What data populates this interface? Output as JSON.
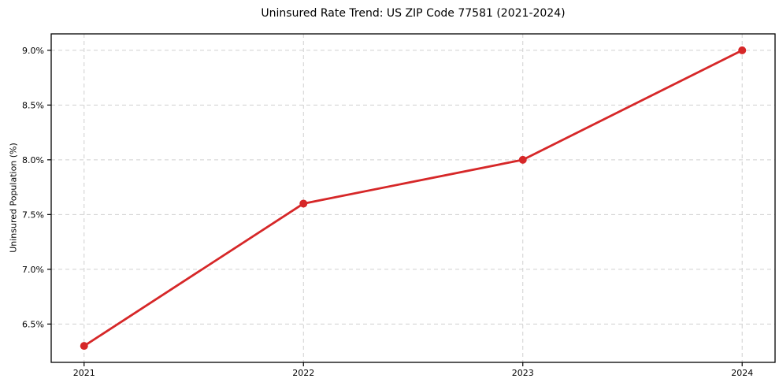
{
  "chart_data": {
    "type": "line",
    "title": "Uninsured Rate Trend: US ZIP Code 77581 (2021-2024)",
    "xlabel": "",
    "ylabel": "Uninsured Population (%)",
    "x": [
      2021,
      2022,
      2023,
      2024
    ],
    "values": [
      6.3,
      7.6,
      8.0,
      9.0
    ],
    "x_tick_labels": [
      "2021",
      "2022",
      "2023",
      "2024"
    ],
    "y_ticks": [
      6.5,
      7.0,
      7.5,
      8.0,
      8.5,
      9.0
    ],
    "y_tick_labels": [
      "6.5%",
      "7.0%",
      "7.5%",
      "8.0%",
      "8.5%",
      "9.0%"
    ],
    "xlim": [
      2020.85,
      2024.15
    ],
    "ylim": [
      6.15,
      9.15
    ],
    "grid": true,
    "grid_style": "dashed",
    "legend": "none",
    "colors": {
      "line": "#d62728",
      "marker": "#d62728",
      "grid": "#d0d0d0",
      "axis": "#000000",
      "text": "#000000",
      "background": "#ffffff"
    }
  }
}
